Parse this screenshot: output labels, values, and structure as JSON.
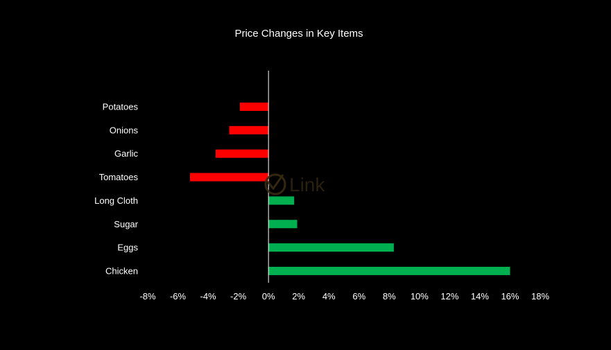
{
  "chart_data": {
    "type": "bar",
    "orientation": "horizontal",
    "title": "Price Changes in Key Items",
    "xlabel": "",
    "ylabel": "",
    "categories": [
      "Potatoes",
      "Onions",
      "Garlic",
      "Tomatoes",
      "Long Cloth",
      "Sugar",
      "Eggs",
      "Chicken"
    ],
    "values": [
      -1.9,
      -2.6,
      -3.5,
      -5.2,
      1.7,
      1.9,
      8.3,
      16.0
    ],
    "xlim": [
      -8,
      18
    ],
    "x_ticks": [
      -8,
      -6,
      -4,
      -2,
      0,
      2,
      4,
      6,
      8,
      10,
      12,
      14,
      16,
      18
    ],
    "x_tick_labels": [
      "-8%",
      "-6%",
      "-4%",
      "-2%",
      "0%",
      "2%",
      "4%",
      "6%",
      "8%",
      "10%",
      "12%",
      "14%",
      "16%",
      "18%"
    ],
    "grid": false,
    "legend": "none",
    "colors": {
      "negative": "#ff0000",
      "positive": "#00b050",
      "background": "#000000",
      "text": "#ffffff",
      "axis": "#ffffff"
    }
  },
  "watermark": {
    "text": "Link",
    "color": "#3a2c12"
  }
}
